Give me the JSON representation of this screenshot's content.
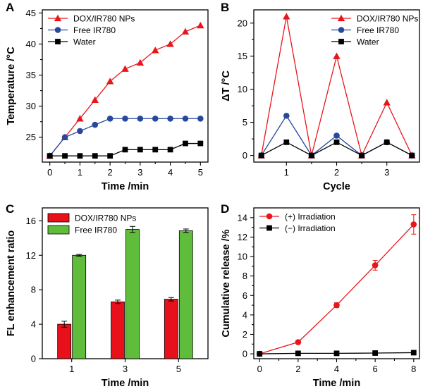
{
  "colors": {
    "red": "#e8161b",
    "blue": "#27489c",
    "black": "#000000",
    "bar_red": "#e8101a",
    "bar_green": "#5fbd3b"
  },
  "chart_data": [
    {
      "panel": "A",
      "type": "line",
      "xlabel": "Time /min",
      "ylabel": "Temperature /°C",
      "xlim": [
        -0.25,
        5.25
      ],
      "ylim": [
        21,
        45.5
      ],
      "xticks": [
        0,
        1,
        2,
        3,
        4,
        5
      ],
      "yticks": [
        25,
        30,
        35,
        40,
        45
      ],
      "legend_position": "top-left",
      "x": [
        0,
        0.5,
        1,
        1.5,
        2,
        2.5,
        3,
        3.5,
        4,
        4.5,
        5
      ],
      "series": [
        {
          "name": "DOX/IR780 NPs",
          "color": "#e8161b",
          "marker": "triangle",
          "values": [
            22,
            25,
            28,
            31,
            34,
            36,
            37,
            39,
            40,
            42,
            43
          ]
        },
        {
          "name": "Free IR780",
          "color": "#27489c",
          "marker": "circle",
          "values": [
            22,
            25,
            26,
            27,
            28,
            28,
            28,
            28,
            28,
            28,
            28
          ]
        },
        {
          "name": "Water",
          "color": "#000000",
          "marker": "square",
          "values": [
            22,
            22,
            22,
            22,
            22,
            23,
            23,
            23,
            23,
            24,
            24
          ]
        }
      ]
    },
    {
      "panel": "B",
      "type": "line",
      "xlabel": "Cycle",
      "ylabel": "ΔT /°C",
      "xlim": [
        0.35,
        3.65
      ],
      "ylim": [
        -1,
        22
      ],
      "xticks": [
        1,
        2,
        3
      ],
      "yticks": [
        0,
        5,
        10,
        15,
        20
      ],
      "legend_position": "top-right",
      "x": [
        0.5,
        1,
        1.5,
        2,
        2.5,
        3,
        3.5
      ],
      "series": [
        {
          "name": "DOX/IR780 NPs",
          "color": "#e8161b",
          "marker": "triangle",
          "values": [
            0,
            21,
            0,
            15,
            0,
            8,
            0
          ]
        },
        {
          "name": "Free IR780",
          "color": "#27489c",
          "marker": "circle",
          "values": [
            0,
            6,
            0,
            3,
            0,
            2,
            0
          ]
        },
        {
          "name": "Water",
          "color": "#000000",
          "marker": "square",
          "values": [
            0,
            2,
            0,
            2,
            0,
            2,
            0
          ]
        }
      ]
    },
    {
      "panel": "C",
      "type": "bar",
      "xlabel": "Time /min",
      "ylabel": "FL enhancement ratio",
      "ylim": [
        0,
        17.5
      ],
      "yticks": [
        0,
        4,
        8,
        12,
        16
      ],
      "categories": [
        "1",
        "3",
        "5"
      ],
      "legend_position": "top-left",
      "series": [
        {
          "name": "DOX/IR780 NPs",
          "color": "#e8101a",
          "values": [
            4.0,
            6.6,
            6.9
          ],
          "errors": [
            0.35,
            0.2,
            0.2
          ]
        },
        {
          "name": "Free IR780",
          "color": "#5fbd3b",
          "values": [
            12.0,
            15.0,
            14.85
          ],
          "errors": [
            0.1,
            0.35,
            0.2
          ]
        }
      ]
    },
    {
      "panel": "D",
      "type": "line",
      "xlabel": "Time /min",
      "ylabel": "Cumulative release /%",
      "xlim": [
        -0.3,
        8.3
      ],
      "ylim": [
        -0.5,
        15
      ],
      "xticks": [
        0,
        2,
        4,
        6,
        8
      ],
      "yticks": [
        0,
        2,
        4,
        6,
        8,
        10,
        12,
        14
      ],
      "legend_position": "top-left",
      "x": [
        0,
        2,
        4,
        6,
        8
      ],
      "series": [
        {
          "name": "(+) Irradiation",
          "color": "#e8161b",
          "marker": "circle",
          "values": [
            0,
            1.2,
            5.0,
            9.1,
            13.3
          ],
          "errors": [
            0,
            0.1,
            0.25,
            0.5,
            1.0
          ]
        },
        {
          "name": "(−) Irradiation",
          "color": "#000000",
          "marker": "square",
          "values": [
            0,
            0.05,
            0.05,
            0.08,
            0.12
          ],
          "errors": [
            0,
            0,
            0,
            0,
            0
          ]
        }
      ]
    }
  ]
}
